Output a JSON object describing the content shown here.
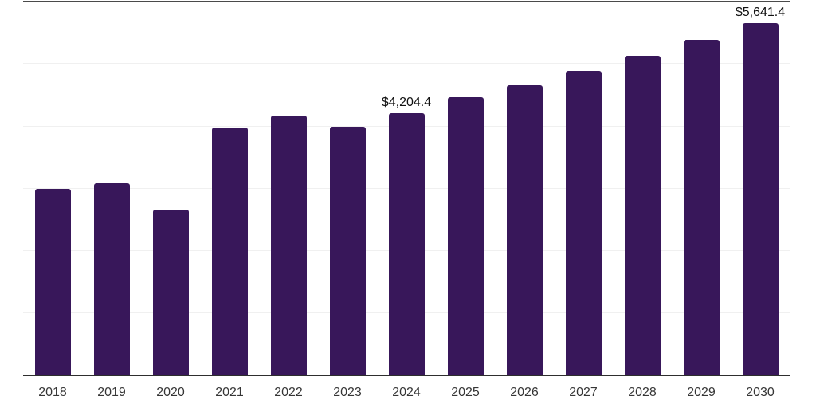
{
  "chart_data": {
    "type": "bar",
    "title": "",
    "xlabel": "",
    "ylabel": "",
    "categories": [
      "2018",
      "2019",
      "2020",
      "2021",
      "2022",
      "2023",
      "2024",
      "2025",
      "2026",
      "2027",
      "2028",
      "2029",
      "2030"
    ],
    "values": [
      2980,
      3070,
      2650,
      3965,
      4160,
      3980,
      4204.4,
      4450,
      4645,
      4875,
      5115,
      5375,
      5641.4
    ],
    "value_labels": [
      {
        "category": "2024",
        "text": "$4,204.4"
      },
      {
        "category": "2030",
        "text": "$5,641.4"
      }
    ],
    "ylim": [
      0,
      6000
    ],
    "grid_interval": 1000,
    "grid_on": true,
    "legend": "none",
    "colors": {
      "bar": "#38175a",
      "grid": "#f0f0f0",
      "top_border": "#4a4a4a",
      "axis": "#2e2e2e",
      "x_label_text": "#363636",
      "value_label_text": "#111111",
      "background": "#ffffff"
    }
  }
}
